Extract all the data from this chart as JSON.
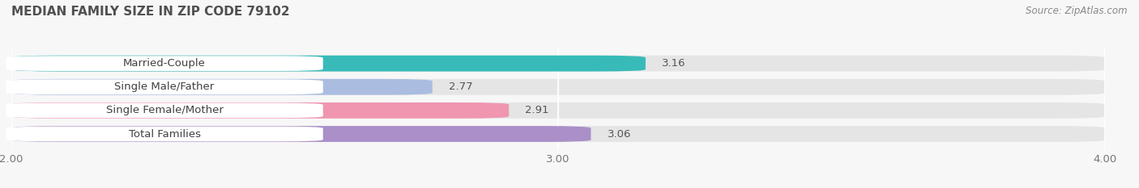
{
  "title": "MEDIAN FAMILY SIZE IN ZIP CODE 79102",
  "source": "Source: ZipAtlas.com",
  "categories": [
    "Married-Couple",
    "Single Male/Father",
    "Single Female/Mother",
    "Total Families"
  ],
  "values": [
    3.16,
    2.77,
    2.91,
    3.06
  ],
  "bar_colors": [
    "#38bbb8",
    "#aabde0",
    "#f096b0",
    "#ab8fc8"
  ],
  "xlim": [
    2.0,
    4.0
  ],
  "xticks": [
    2.0,
    3.0,
    4.0
  ],
  "xtick_labels": [
    "2.00",
    "3.00",
    "4.00"
  ],
  "bar_height": 0.68,
  "background_color": "#f7f7f7",
  "title_fontsize": 11,
  "label_fontsize": 9.5,
  "value_fontsize": 9.5,
  "source_fontsize": 8.5,
  "white_label_bg": "#ffffff",
  "gray_bar_bg": "#e5e5e5"
}
